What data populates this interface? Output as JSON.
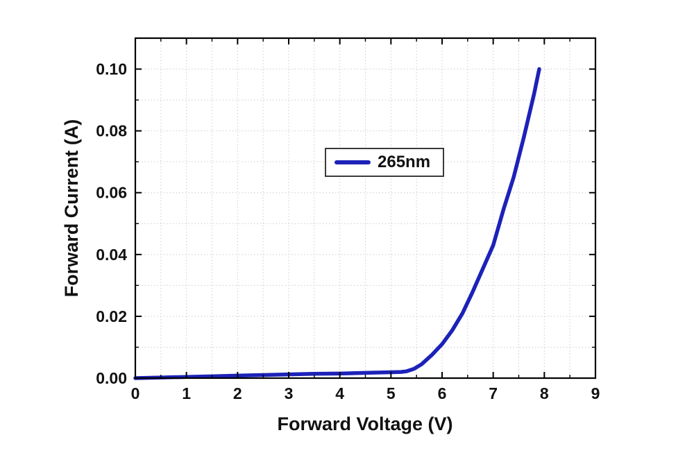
{
  "chart_data": {
    "type": "line",
    "title": "",
    "xlabel": "Forward Voltage (V)",
    "ylabel": "Forward Current (A)",
    "xlim": [
      0,
      9
    ],
    "ylim": [
      0,
      0.11
    ],
    "xticks": [
      0,
      1,
      2,
      3,
      4,
      5,
      6,
      7,
      8,
      9
    ],
    "xtick_labels": [
      "0",
      "1",
      "2",
      "3",
      "4",
      "5",
      "6",
      "7",
      "8",
      "9"
    ],
    "yticks": [
      0.0,
      0.02,
      0.04,
      0.06,
      0.08,
      0.1
    ],
    "ytick_labels": [
      "0.00",
      "0.02",
      "0.04",
      "0.06",
      "0.08",
      "0.10"
    ],
    "minor_x_step": 0.5,
    "minor_y_step": 0.01,
    "grid": "dotted",
    "legend": {
      "position": "upper-center",
      "entries": [
        {
          "label": "265nm",
          "color": "#1c22b8"
        }
      ]
    },
    "series": [
      {
        "name": "265nm",
        "color": "#1c22b8",
        "x": [
          0,
          0.5,
          1,
          1.5,
          2,
          2.5,
          3,
          3.5,
          4,
          4.5,
          5,
          5.2,
          5.3,
          5.45,
          5.6,
          5.8,
          6.0,
          6.2,
          6.4,
          6.6,
          6.8,
          7.0,
          7.2,
          7.4,
          7.6,
          7.8,
          7.9
        ],
        "y": [
          0.0,
          0.0002,
          0.0004,
          0.0006,
          0.0008,
          0.001,
          0.0012,
          0.0014,
          0.0015,
          0.0017,
          0.0019,
          0.002,
          0.0022,
          0.003,
          0.0045,
          0.0075,
          0.011,
          0.0155,
          0.021,
          0.028,
          0.0355,
          0.043,
          0.0545,
          0.065,
          0.078,
          0.092,
          0.1
        ]
      }
    ]
  },
  "colors": {
    "line": "#1c22b8",
    "frame": "#000000",
    "grid": "#cccccc",
    "text": "#111111",
    "background": "#ffffff"
  }
}
